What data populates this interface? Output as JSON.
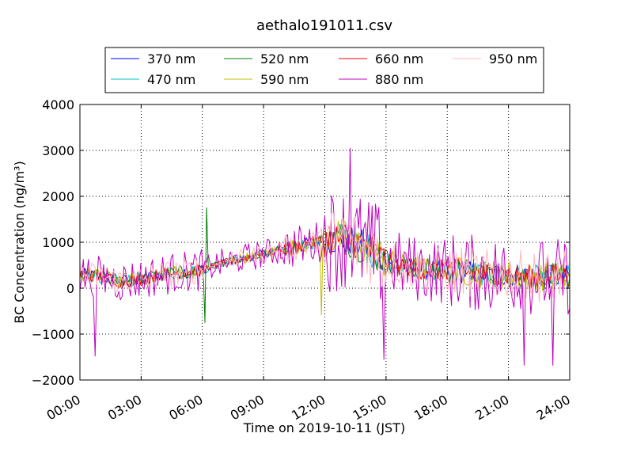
{
  "chart_data": {
    "type": "line",
    "title": "aethalo191011.csv",
    "xlabel": "Time on 2019-10-11 (JST)",
    "ylabel": "BC Concentration (ng/m³)",
    "x_ticks": [
      "00:00",
      "03:00",
      "06:00",
      "09:00",
      "12:00",
      "15:00",
      "18:00",
      "21:00",
      "24:00"
    ],
    "y_ticks": [
      -2000,
      -1000,
      0,
      1000,
      2000,
      3000,
      4000
    ],
    "xlim": [
      "00:00",
      "24:00"
    ],
    "ylim": [
      -2000,
      4000
    ],
    "grid": true,
    "legend_position": "top",
    "series": [
      {
        "name": "370 nm",
        "color": "#0000ff",
        "noise": 1.0
      },
      {
        "name": "470 nm",
        "color": "#00bfbf",
        "noise": 1.0
      },
      {
        "name": "520 nm",
        "color": "#008000",
        "noise": 1.1
      },
      {
        "name": "590 nm",
        "color": "#bfbf00",
        "noise": 1.2
      },
      {
        "name": "660 nm",
        "color": "#ff0000",
        "noise": 1.0
      },
      {
        "name": "880 nm",
        "color": "#bf00bf",
        "noise": 3.2
      },
      {
        "name": "950 nm",
        "color": "#ffb6c1",
        "noise": 2.1
      }
    ],
    "baseline_profile": {
      "hours": [
        0,
        1,
        2,
        3,
        4,
        5,
        6,
        7,
        8,
        9,
        10,
        11,
        12,
        13,
        14,
        15,
        16,
        17,
        18,
        19,
        20,
        21,
        22,
        23,
        24
      ],
      "values": [
        300,
        250,
        150,
        200,
        300,
        350,
        400,
        550,
        650,
        750,
        850,
        950,
        1050,
        1100,
        900,
        600,
        450,
        400,
        400,
        350,
        300,
        300,
        250,
        250,
        250
      ]
    },
    "features": [
      {
        "series": "520 nm",
        "time": "06:10",
        "value": 1750
      },
      {
        "series": "520 nm",
        "time": "06:05",
        "value": -750
      },
      {
        "series": "590 nm",
        "time": "11:50",
        "value": -580
      },
      {
        "series": "590 nm",
        "time": "12:05",
        "value": 1100
      },
      {
        "series": "880 nm",
        "time": "13:15",
        "value": 3050
      },
      {
        "series": "880 nm",
        "time": "14:55",
        "value": -1550
      },
      {
        "series": "880 nm",
        "time": "00:45",
        "value": -1480
      },
      {
        "series": "880 nm",
        "time": "21:45",
        "value": -1680
      },
      {
        "series": "880 nm",
        "time": "23:10",
        "value": -1680
      }
    ]
  }
}
